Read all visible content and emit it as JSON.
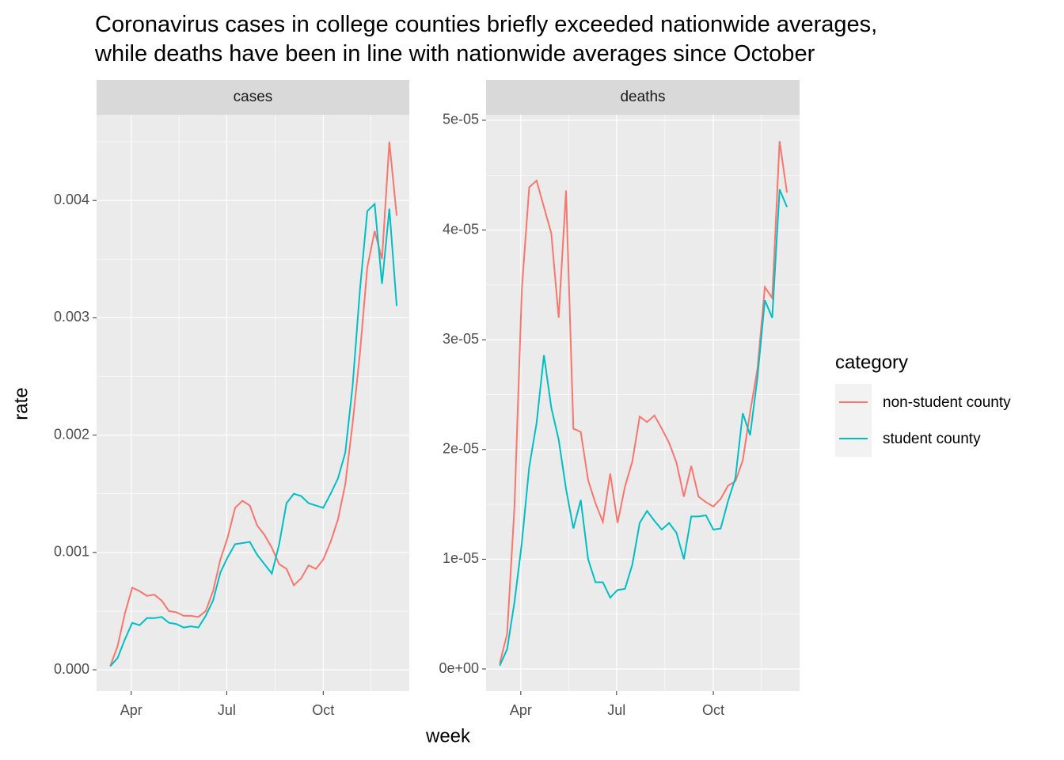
{
  "title": [
    "Coronavirus cases in college counties briefly exceeded nationwide averages,",
    "while deaths have been in line with nationwide averages since October"
  ],
  "x_label": "week",
  "y_label": "rate",
  "legend": {
    "title": "category",
    "position": "right"
  },
  "chart_data": [
    {
      "type": "line",
      "title": "cases",
      "x": [
        72,
        79,
        86,
        93,
        100,
        107,
        114,
        121,
        128,
        135,
        142,
        149,
        156,
        163,
        170,
        177,
        184,
        191,
        198,
        205,
        212,
        219,
        226,
        233,
        240,
        247,
        254,
        261,
        268,
        275,
        282,
        289,
        296,
        303,
        310,
        317,
        324,
        331,
        338,
        345
      ],
      "xlim": [
        59,
        357
      ],
      "xticks": [
        {
          "value": 92,
          "label": "Apr"
        },
        {
          "value": 183,
          "label": "Jul"
        },
        {
          "value": 275,
          "label": "Oct"
        }
      ],
      "ylim": [
        -0.000182,
        0.00473
      ],
      "yticks": [
        {
          "value": 0,
          "label": "0.000"
        },
        0.001,
        0.002,
        0.003,
        0.004
      ],
      "grid": true,
      "series": [
        {
          "name": "non-student county",
          "color": "#f8766d",
          "values": [
            3e-05,
            0.0002,
            0.00048,
            0.0007,
            0.00067,
            0.00063,
            0.00064,
            0.00059,
            0.0005,
            0.00049,
            0.00046,
            0.00046,
            0.00045,
            0.0005,
            0.00067,
            0.00094,
            0.00113,
            0.00138,
            0.00144,
            0.0014,
            0.00123,
            0.00115,
            0.00104,
            0.0009,
            0.00086,
            0.00072,
            0.00078,
            0.00089,
            0.00086,
            0.00094,
            0.00109,
            0.00128,
            0.00158,
            0.0021,
            0.0027,
            0.00343,
            0.00374,
            0.0035,
            0.0045,
            0.00387
          ]
        },
        {
          "name": "student county",
          "color": "#00bfc4",
          "values": [
            3e-05,
            0.0001,
            0.00026,
            0.0004,
            0.00038,
            0.00044,
            0.00044,
            0.00045,
            0.0004,
            0.00039,
            0.00036,
            0.00037,
            0.00036,
            0.00046,
            0.00059,
            0.00083,
            0.00096,
            0.00107,
            0.00108,
            0.00109,
            0.00098,
            0.0009,
            0.00082,
            0.00107,
            0.00142,
            0.0015,
            0.00148,
            0.00142,
            0.0014,
            0.00138,
            0.0015,
            0.00163,
            0.00185,
            0.00242,
            0.00324,
            0.00391,
            0.00397,
            0.00329,
            0.00393,
            0.0031
          ]
        }
      ]
    },
    {
      "type": "line",
      "title": "deaths",
      "x": [
        72,
        79,
        86,
        93,
        100,
        107,
        114,
        121,
        128,
        135,
        142,
        149,
        156,
        163,
        170,
        177,
        184,
        191,
        198,
        205,
        212,
        219,
        226,
        233,
        240,
        247,
        254,
        261,
        268,
        275,
        282,
        289,
        296,
        303,
        310,
        317,
        324,
        331,
        338,
        345
      ],
      "xlim": [
        59,
        357
      ],
      "xticks": [
        {
          "value": 92,
          "label": "Apr"
        },
        {
          "value": 183,
          "label": "Jul"
        },
        {
          "value": 275,
          "label": "Oct"
        }
      ],
      "ylim": [
        -2.02e-06,
        5.05e-05
      ],
      "yticks": [
        {
          "value": 0,
          "label": "0e+00"
        },
        {
          "value": 1e-05,
          "label": "1e-05"
        },
        {
          "value": 2e-05,
          "label": "2e-05"
        },
        {
          "value": 3e-05,
          "label": "3e-05"
        },
        {
          "value": 4e-05,
          "label": "4e-05"
        },
        {
          "value": 5e-05,
          "label": "5e-05"
        }
      ],
      "grid": true,
      "series": [
        {
          "color": "#f8766d",
          "values": [
            5e-07,
            3.2e-06,
            1.48e-05,
            3.46e-05,
            4.39e-05,
            4.45e-05,
            4.21e-05,
            3.97e-05,
            3.2e-05,
            4.36e-05,
            2.19e-05,
            2.16e-05,
            1.72e-05,
            1.51e-05,
            1.34e-05,
            1.78e-05,
            1.33e-05,
            1.66e-05,
            1.89e-05,
            2.3e-05,
            2.25e-05,
            2.31e-05,
            2.19e-05,
            2.06e-05,
            1.88e-05,
            1.57e-05,
            1.85e-05,
            1.57e-05,
            1.52e-05,
            1.48e-05,
            1.55e-05,
            1.67e-05,
            1.71e-05,
            1.9e-05,
            2.34e-05,
            2.74e-05,
            3.48e-05,
            3.38e-05,
            4.81e-05,
            4.34e-05
          ]
        },
        {
          "color": "#00bfc4",
          "values": [
            3e-07,
            1.8e-06,
            6.1e-06,
            1.15e-05,
            1.84e-05,
            2.24e-05,
            2.86e-05,
            2.38e-05,
            2.09e-05,
            1.64e-05,
            1.28e-05,
            1.54e-05,
            1e-05,
            7.9e-06,
            7.9e-06,
            6.5e-06,
            7.2e-06,
            7.3e-06,
            9.5e-06,
            1.33e-05,
            1.44e-05,
            1.35e-05,
            1.27e-05,
            1.33e-05,
            1.24e-05,
            1e-05,
            1.39e-05,
            1.39e-05,
            1.4e-05,
            1.27e-05,
            1.28e-05,
            1.53e-05,
            1.74e-05,
            2.33e-05,
            2.13e-05,
            2.66e-05,
            3.36e-05,
            3.2e-05,
            4.37e-05,
            4.21e-05
          ]
        }
      ]
    }
  ]
}
